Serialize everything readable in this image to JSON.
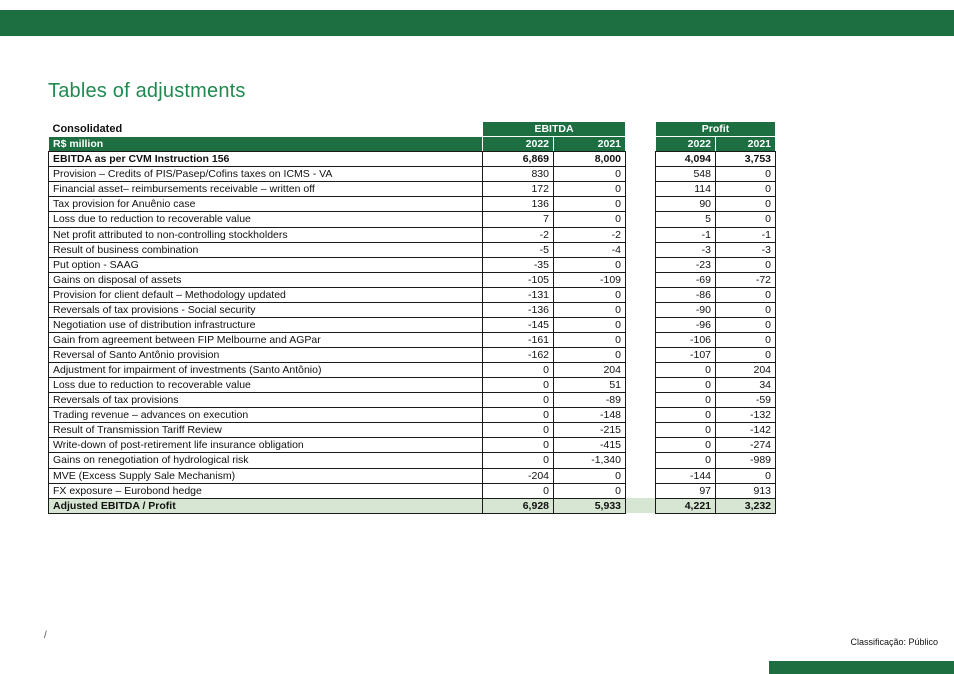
{
  "colors": {
    "dark_green": "#1d6f42",
    "light_green": "#d7e6d2",
    "title_green": "#1f8a50"
  },
  "title": "Tables of adjustments",
  "table": {
    "corner_label": "Consolidated",
    "group_headers": [
      "EBITDA",
      "Profit"
    ],
    "row_header_label": "R$ million",
    "year_headers": [
      "2022",
      "2021"
    ],
    "rows": [
      {
        "label": "EBITDA as per CVM Instruction 156",
        "bold": true,
        "values": [
          "6,869",
          "8,000",
          "4,094",
          "3,753"
        ]
      },
      {
        "label": "Provision – Credits of PIS/Pasep/Cofins taxes on ICMS - VA",
        "bold": false,
        "values": [
          "830",
          "0",
          "548",
          "0"
        ]
      },
      {
        "label": "Financial asset– reimbursements receivable – written off",
        "bold": false,
        "values": [
          "172",
          "0",
          "114",
          "0"
        ]
      },
      {
        "label": "Tax provision for Anuênio case",
        "bold": false,
        "values": [
          "136",
          "0",
          "90",
          "0"
        ]
      },
      {
        "label": "Loss due to reduction to recoverable value",
        "bold": false,
        "values": [
          "7",
          "0",
          "5",
          "0"
        ]
      },
      {
        "label": "Net profit attributed to non-controlling stockholders",
        "bold": false,
        "values": [
          "-2",
          "-2",
          "-1",
          "-1"
        ]
      },
      {
        "label": "Result of business combination",
        "bold": false,
        "values": [
          "-5",
          "-4",
          "-3",
          "-3"
        ]
      },
      {
        "label": "Put option - SAAG",
        "bold": false,
        "values": [
          "-35",
          "0",
          "-23",
          "0"
        ]
      },
      {
        "label": "Gains on disposal of assets",
        "bold": false,
        "values": [
          "-105",
          "-109",
          "-69",
          "-72"
        ]
      },
      {
        "label": "Provision for client default – Methodology updated",
        "bold": false,
        "values": [
          "-131",
          "0",
          "-86",
          "0"
        ]
      },
      {
        "label": "Reversals of tax provisions - Social security",
        "bold": false,
        "values": [
          "-136",
          "0",
          "-90",
          "0"
        ]
      },
      {
        "label": "Negotiation use of distribution infrastructure",
        "bold": false,
        "values": [
          "-145",
          "0",
          "-96",
          "0"
        ]
      },
      {
        "label": "Gain from agreement between FIP Melbourne and AGPar",
        "bold": false,
        "values": [
          "-161",
          "0",
          "-106",
          "0"
        ]
      },
      {
        "label": "Reversal of Santo Antônio provision",
        "bold": false,
        "values": [
          "-162",
          "0",
          "-107",
          "0"
        ]
      },
      {
        "label": "Adjustment for impairment of investments (Santo Antônio)",
        "bold": false,
        "values": [
          "0",
          "204",
          "0",
          "204"
        ]
      },
      {
        "label": "Loss due to reduction to recoverable value",
        "bold": false,
        "values": [
          "0",
          "51",
          "0",
          "34"
        ]
      },
      {
        "label": "Reversals of tax provisions",
        "bold": false,
        "values": [
          "0",
          "-89",
          "0",
          "-59"
        ]
      },
      {
        "label": "Trading revenue – advances on execution",
        "bold": false,
        "values": [
          "0",
          "-148",
          "0",
          "-132"
        ]
      },
      {
        "label": "Result of Transmission Tariff Review",
        "bold": false,
        "values": [
          "0",
          "-215",
          "0",
          "-142"
        ]
      },
      {
        "label": "Write-down of post-retirement life insurance obligation",
        "bold": false,
        "values": [
          "0",
          "-415",
          "0",
          "-274"
        ]
      },
      {
        "label": "Gains on renegotiation of hydrological risk",
        "bold": false,
        "values": [
          "0",
          "-1,340",
          "0",
          "-989"
        ]
      },
      {
        "label": "MVE (Excess Supply Sale Mechanism)",
        "bold": false,
        "values": [
          "-204",
          "0",
          "-144",
          "0"
        ]
      },
      {
        "label": "FX exposure – Eurobond hedge",
        "bold": false,
        "values": [
          "0",
          "0",
          "97",
          "913"
        ]
      }
    ],
    "footer_row": {
      "label": "Adjusted EBITDA / Profit",
      "values": [
        "6,928",
        "5,933",
        "4,221",
        "3,232"
      ]
    }
  },
  "footer_mark": "/",
  "classification": "Classificação: Público"
}
